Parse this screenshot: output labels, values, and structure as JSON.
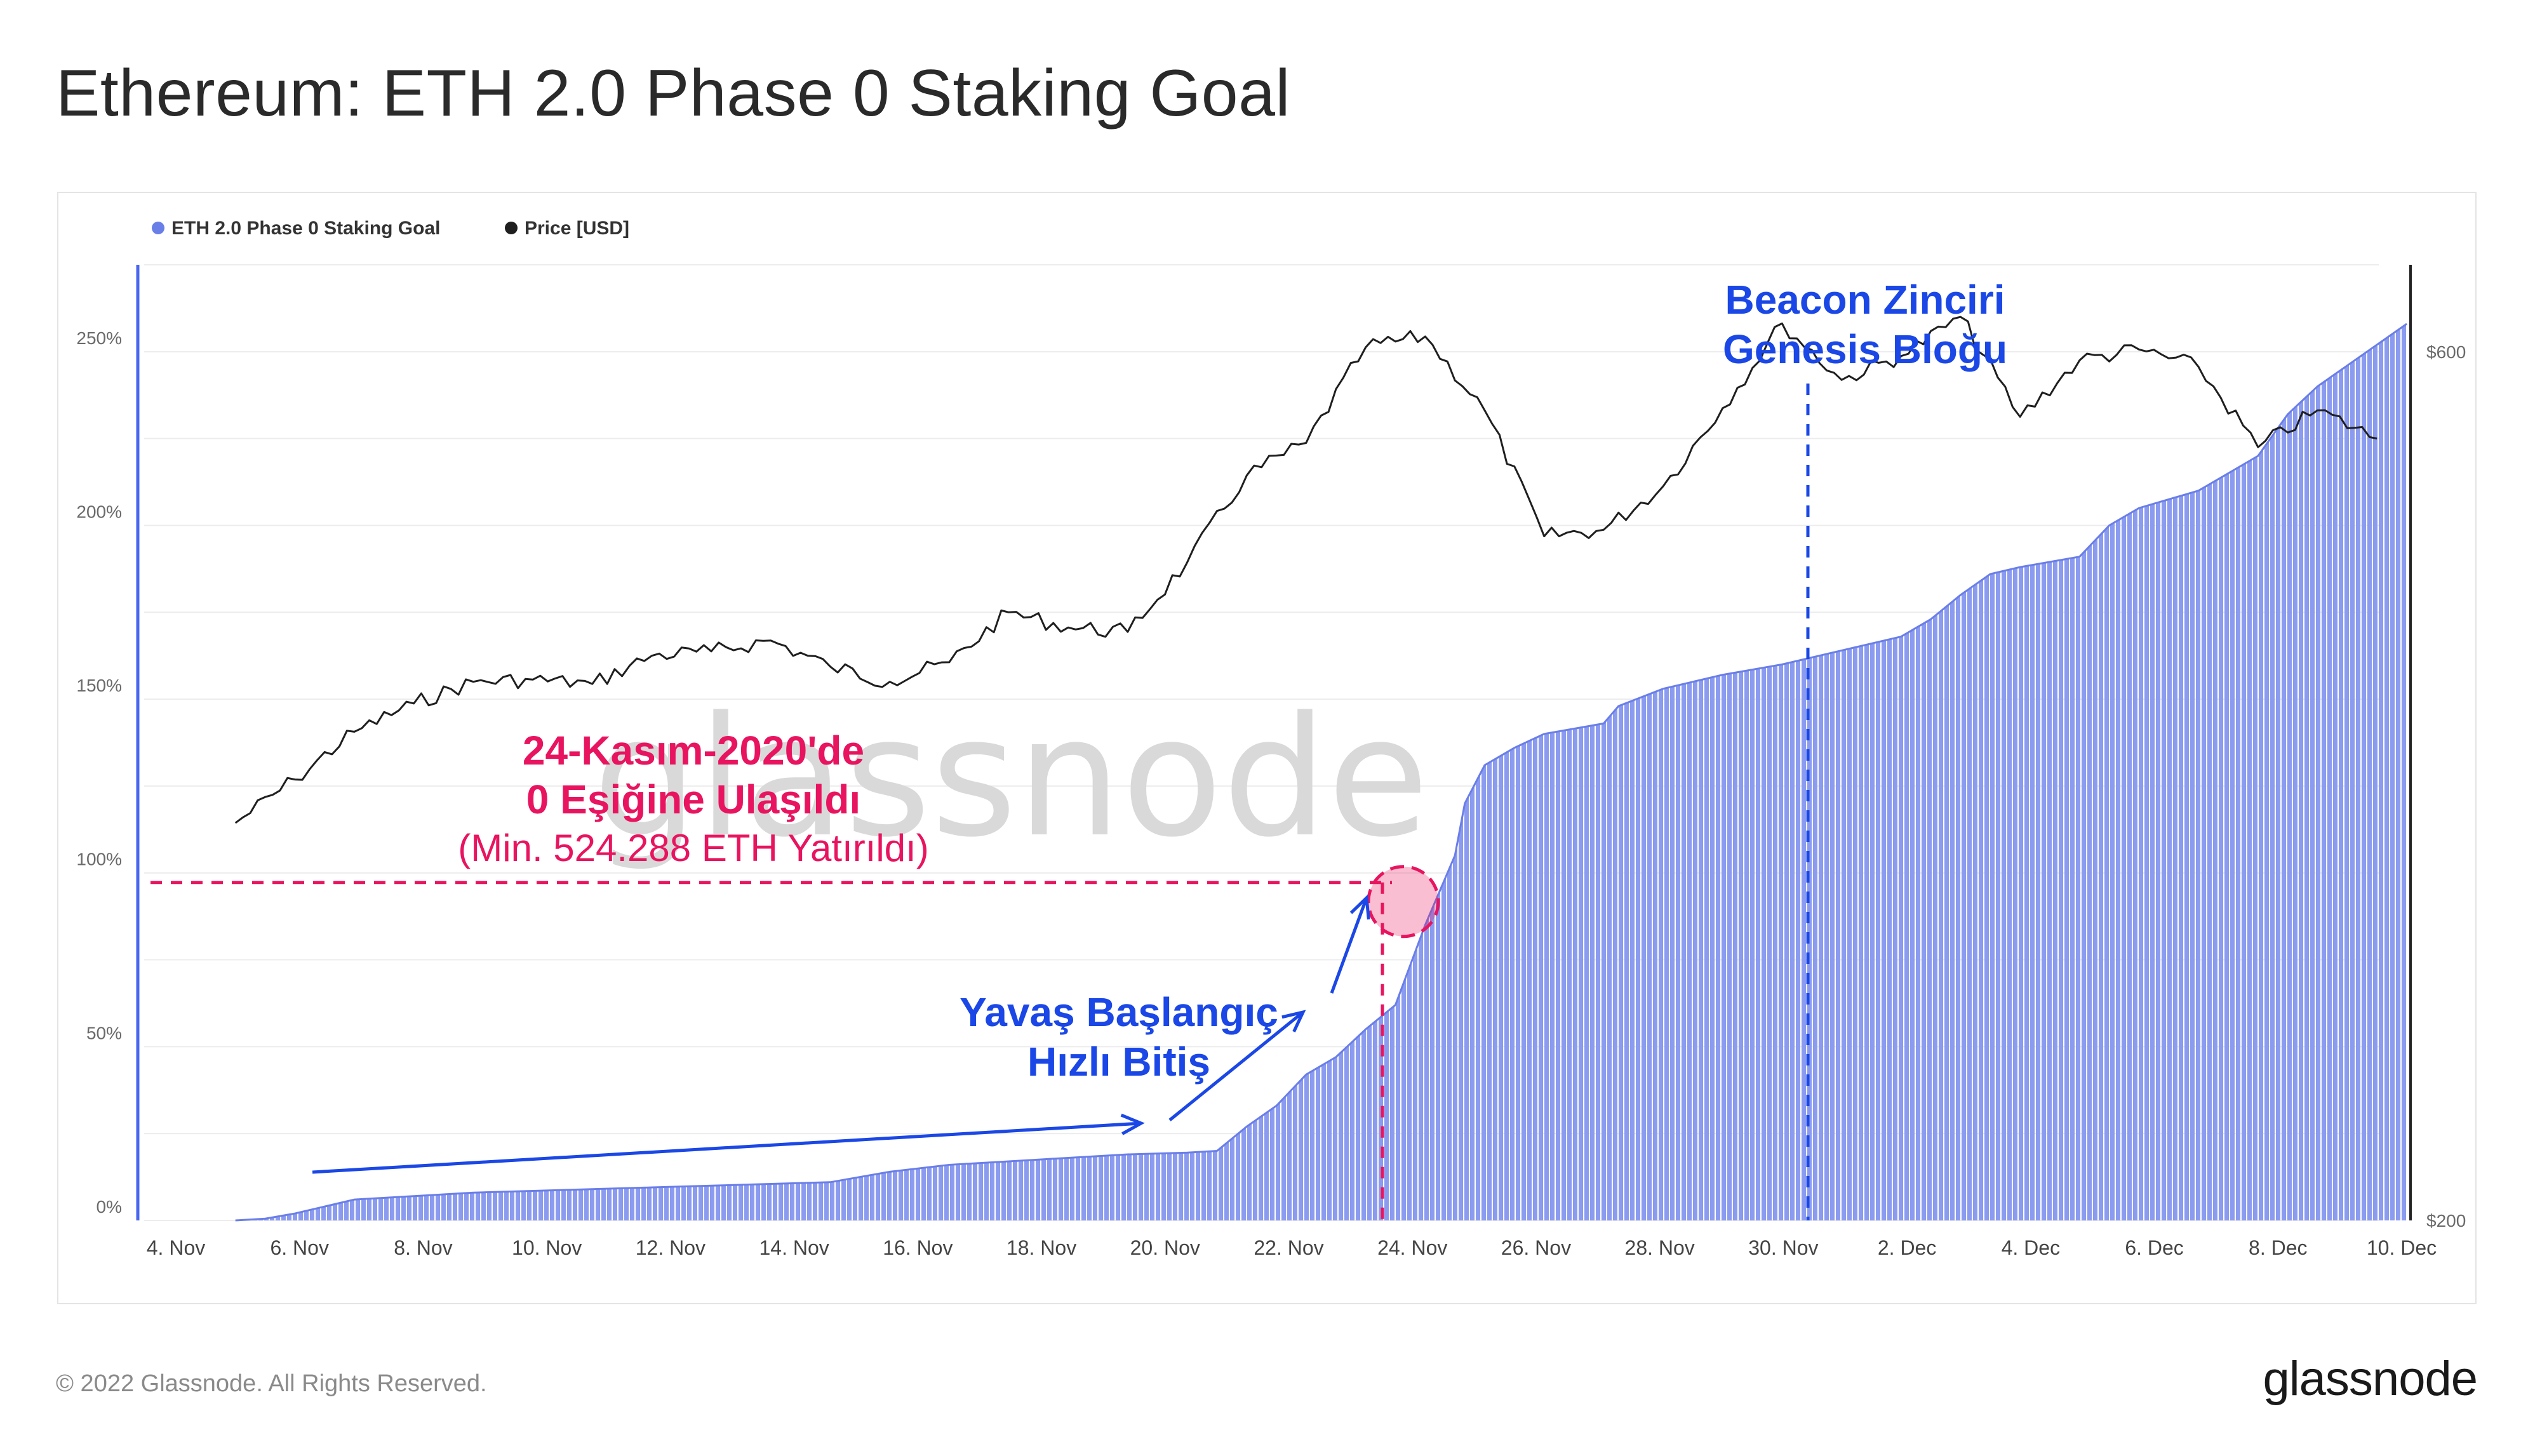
{
  "page": {
    "title": "Ethereum: ETH 2.0 Phase 0 Staking Goal",
    "copyright": "© 2022 Glassnode. All Rights Reserved.",
    "logo": "glassnode",
    "watermark": "glassnode"
  },
  "colors": {
    "staking_fill": "#8b9bef",
    "staking_line": "#6a7ee8",
    "price_line": "#1f1f1f",
    "annotation_pink": "#e8145f",
    "annotation_blue": "#1a47e6",
    "grid": "#ececec",
    "axis_text": "#6a6a6a"
  },
  "chart_data": {
    "type": "area",
    "legend_position": "top-left",
    "grid": true,
    "x_tick_labels": [
      "4. Nov",
      "6. Nov",
      "8. Nov",
      "10. Nov",
      "12. Nov",
      "14. Nov",
      "16. Nov",
      "18. Nov",
      "20. Nov",
      "22. Nov",
      "24. Nov",
      "26. Nov",
      "28. Nov",
      "30. Nov",
      "2. Dec",
      "4. Dec",
      "6. Dec",
      "8. Dec",
      "10. Dec"
    ],
    "xlim": [
      "2020-11-03",
      "2020-12-10"
    ],
    "y_left": {
      "ticks": [
        "0%",
        "50%",
        "100%",
        "150%",
        "200%",
        "250%"
      ],
      "ylim": [
        0,
        275
      ]
    },
    "y_right": {
      "ticks": [
        "$200",
        "$600"
      ],
      "ylim": [
        200,
        640
      ]
    },
    "series": [
      {
        "name": "ETH 2.0 Phase 0 Staking Goal",
        "axis": "left",
        "unit": "%",
        "points": [
          [
            "2020-11-04",
            0
          ],
          [
            "2020-11-04T12",
            0.5
          ],
          [
            "2020-11-05",
            2
          ],
          [
            "2020-11-05T12",
            4
          ],
          [
            "2020-11-06",
            6
          ],
          [
            "2020-11-07",
            7
          ],
          [
            "2020-11-08",
            8
          ],
          [
            "2020-11-09",
            8.5
          ],
          [
            "2020-11-10",
            9
          ],
          [
            "2020-11-11",
            9.5
          ],
          [
            "2020-11-12",
            10
          ],
          [
            "2020-11-13",
            10.5
          ],
          [
            "2020-11-14",
            11
          ],
          [
            "2020-11-15",
            14
          ],
          [
            "2020-11-16",
            16
          ],
          [
            "2020-11-17",
            17
          ],
          [
            "2020-11-18",
            18
          ],
          [
            "2020-11-19",
            19
          ],
          [
            "2020-11-20",
            19.5
          ],
          [
            "2020-11-20T12",
            20
          ],
          [
            "2020-11-21",
            27
          ],
          [
            "2020-11-21T12",
            33
          ],
          [
            "2020-11-22",
            42
          ],
          [
            "2020-11-22T12",
            47
          ],
          [
            "2020-11-23",
            55
          ],
          [
            "2020-11-23T12",
            62
          ],
          [
            "2020-11-24",
            85
          ],
          [
            "2020-11-24T12",
            105
          ],
          [
            "2020-11-24T16",
            120
          ],
          [
            "2020-11-25",
            131
          ],
          [
            "2020-11-25T12",
            136
          ],
          [
            "2020-11-26",
            140
          ],
          [
            "2020-11-27",
            143
          ],
          [
            "2020-11-27T06",
            148
          ],
          [
            "2020-11-28",
            153
          ],
          [
            "2020-11-29",
            157
          ],
          [
            "2020-11-30",
            160
          ],
          [
            "2020-12-01",
            164
          ],
          [
            "2020-12-02",
            168
          ],
          [
            "2020-12-02T12",
            173
          ],
          [
            "2020-12-03",
            180
          ],
          [
            "2020-12-03T12",
            186
          ],
          [
            "2020-12-04",
            188
          ],
          [
            "2020-12-05",
            191
          ],
          [
            "2020-12-05T12",
            200
          ],
          [
            "2020-12-06",
            205
          ],
          [
            "2020-12-07",
            210
          ],
          [
            "2020-12-08",
            220
          ],
          [
            "2020-12-08T12",
            232
          ],
          [
            "2020-12-09",
            240
          ],
          [
            "2020-12-09T12",
            246
          ],
          [
            "2020-12-10",
            252
          ],
          [
            "2020-12-10T12",
            258
          ]
        ]
      },
      {
        "name": "Price [USD]",
        "axis": "right",
        "unit": "USD",
        "points": [
          [
            "2020-11-04",
            383
          ],
          [
            "2020-11-05",
            403
          ],
          [
            "2020-11-06",
            425
          ],
          [
            "2020-11-07",
            438
          ],
          [
            "2020-11-08",
            448
          ],
          [
            "2020-11-09",
            449
          ],
          [
            "2020-11-10",
            447
          ],
          [
            "2020-11-11",
            460
          ],
          [
            "2020-11-12",
            462
          ],
          [
            "2020-11-13",
            467
          ],
          [
            "2020-11-14",
            455
          ],
          [
            "2020-11-15",
            448
          ],
          [
            "2020-11-16",
            457
          ],
          [
            "2020-11-17",
            480
          ],
          [
            "2020-11-18",
            473
          ],
          [
            "2020-11-19",
            471
          ],
          [
            "2020-11-20",
            503
          ],
          [
            "2020-11-21",
            543
          ],
          [
            "2020-11-22",
            558
          ],
          [
            "2020-11-23",
            602
          ],
          [
            "2020-11-24",
            607
          ],
          [
            "2020-11-25",
            573
          ],
          [
            "2020-11-26",
            515
          ],
          [
            "2020-11-27",
            518
          ],
          [
            "2020-11-28",
            538
          ],
          [
            "2020-11-29",
            574
          ],
          [
            "2020-11-30",
            613
          ],
          [
            "2020-12-01",
            587
          ],
          [
            "2020-12-02",
            598
          ],
          [
            "2020-12-03",
            616
          ],
          [
            "2020-12-04",
            570
          ],
          [
            "2020-12-05",
            596
          ],
          [
            "2020-12-06",
            601
          ],
          [
            "2020-12-07",
            593
          ],
          [
            "2020-12-08",
            556
          ],
          [
            "2020-12-09",
            573
          ],
          [
            "2020-12-10",
            560
          ]
        ]
      }
    ],
    "annotations": [
      {
        "kind": "threshold",
        "value": 100,
        "date": "2020-11-24T06",
        "text": [
          "24-Kasım-2020'de",
          "0 Eşiğine Ulaşıldı",
          "(Min. 524.288 ETH Yatırıldı)"
        ]
      },
      {
        "kind": "trend",
        "text": [
          "Yavaş Başlangıç",
          "Hızlı Bitiş"
        ]
      },
      {
        "kind": "event",
        "date": "2020-12-01",
        "text": [
          "Beacon Zinciri",
          "Genesis Bloğu"
        ]
      }
    ]
  }
}
